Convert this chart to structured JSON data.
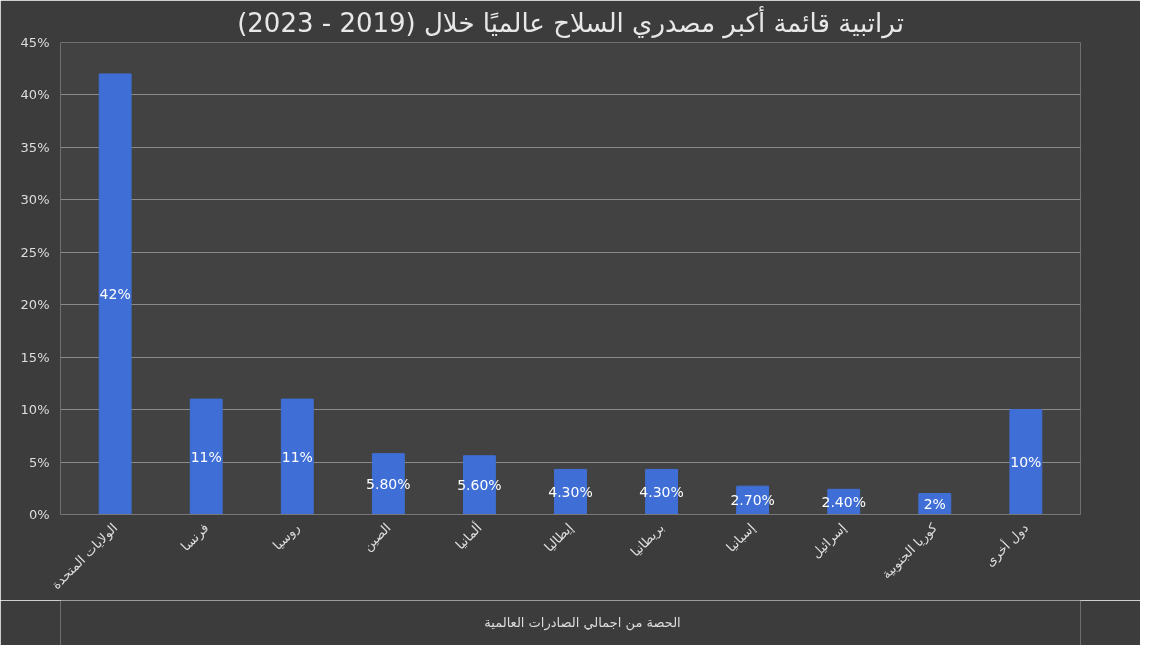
{
  "chart_data": {
    "type": "bar",
    "title": "تراتبية قائمة أكبر مصدري السلاح عالميًا خلال (2019 - 2023)",
    "categories": [
      "الولايات المتحدة",
      "فرنسا",
      "روسيا",
      "الصين",
      "ألمانيا",
      "إيطاليا",
      "بريطانيا",
      "إسبانيا",
      "إسرائيل",
      "كوريا الجنوبية",
      "دول أخرى"
    ],
    "series": [
      {
        "name": "الحصة من اجمالي الصادرات العالمية",
        "color": "#3f6fd6",
        "values": [
          42,
          11,
          11,
          5.8,
          5.6,
          4.3,
          4.3,
          2.7,
          2.4,
          2,
          10
        ],
        "value_labels": [
          "42%",
          "11%",
          "11%",
          "5.80%",
          "5.60%",
          "4.30%",
          "4.30%",
          "2.70%",
          "2.40%",
          "2%",
          "10%"
        ]
      }
    ],
    "ylim": [
      0,
      45
    ],
    "yticks": [
      {
        "value": 0,
        "label": "0%"
      },
      {
        "value": 5,
        "label": "5%"
      },
      {
        "value": 10,
        "label": "10%"
      },
      {
        "value": 15,
        "label": "15%"
      },
      {
        "value": 20,
        "label": "20%"
      },
      {
        "value": 25,
        "label": "25%"
      },
      {
        "value": 30,
        "label": "30%"
      },
      {
        "value": 35,
        "label": "35%"
      },
      {
        "value": 40,
        "label": "40%"
      },
      {
        "value": 45,
        "label": "45%"
      }
    ],
    "grid": "y",
    "legend": "bottom"
  }
}
